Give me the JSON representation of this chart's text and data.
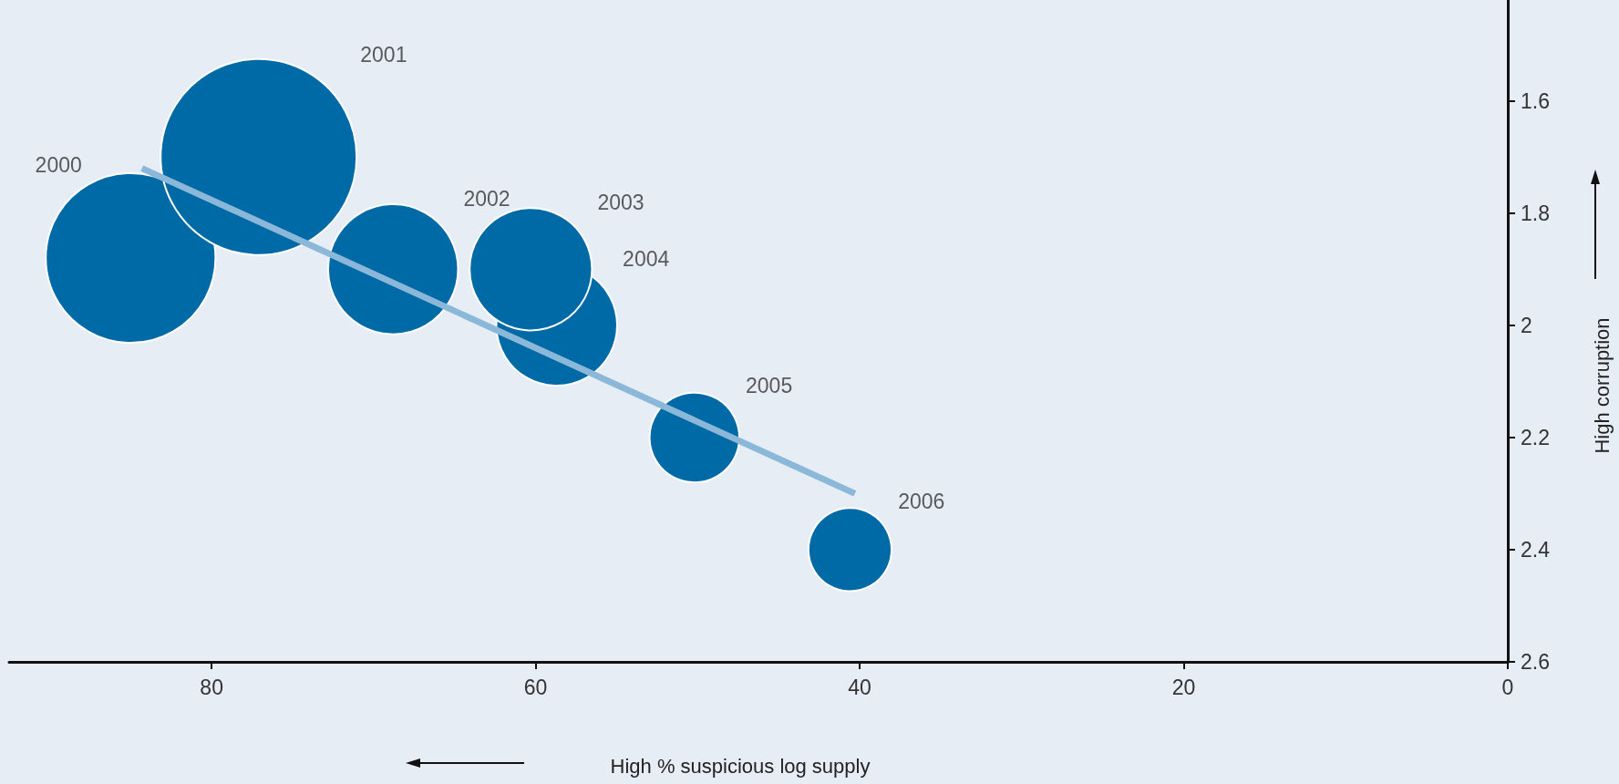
{
  "chart_data": {
    "type": "bubble",
    "xlabel": "High % suspicious log supply",
    "ylabel": "High corruption",
    "series": [
      {
        "color": "#006aa7",
        "marker": "circle",
        "x": [
          85,
          77.1,
          68.8,
          58.7,
          60.3,
          50.2,
          40.6
        ],
        "values": [
          1.88,
          1.7,
          1.9,
          2.0,
          1.9,
          2.2,
          2.4
        ],
        "sizes": [
          0.75,
          1,
          0.44,
          0.38,
          0.39,
          0.21,
          0.18
        ]
      },
      {
        "type": "line",
        "color": "#8bb8d8",
        "x": [
          84.3,
          40.3
        ],
        "values": [
          1.72,
          2.3
        ]
      }
    ],
    "annotations": [
      "2000",
      "2001",
      "2002",
      "2004",
      "2003",
      "2005",
      "2006"
    ],
    "xlim": [
      92.5,
      0
    ],
    "xticks": [
      80,
      60,
      40,
      20,
      0
    ],
    "ylim": [
      2.6,
      1.42
    ],
    "yticks": [
      1.6,
      1.8,
      2,
      2.2,
      2.4,
      2.6
    ],
    "grid": false
  }
}
